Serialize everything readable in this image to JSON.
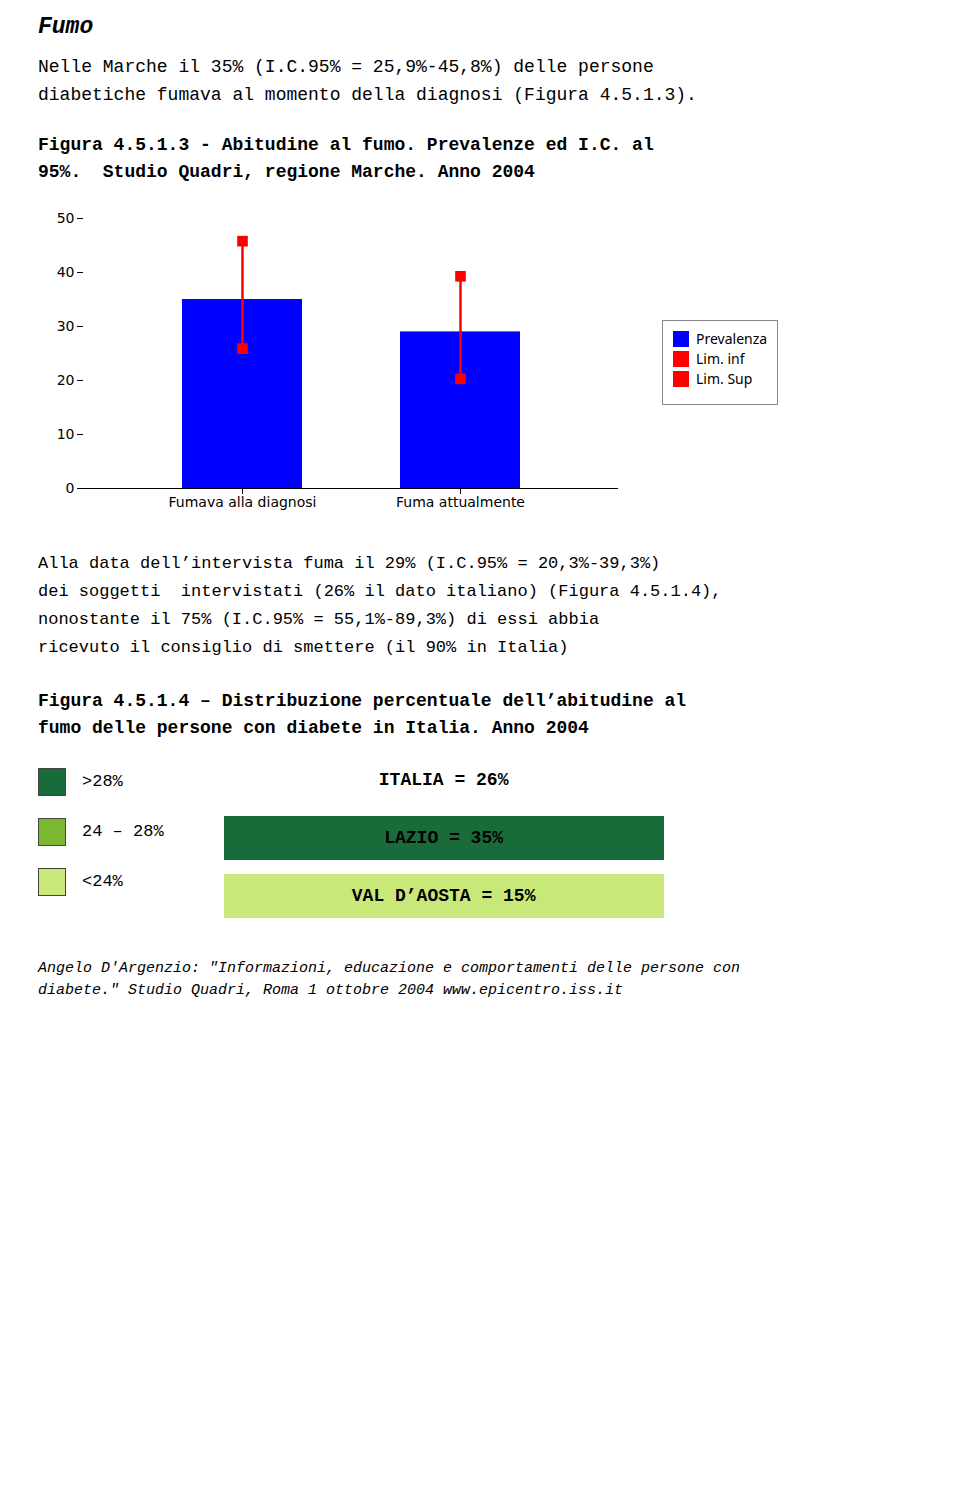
{
  "chart_data": [
    {
      "type": "bar",
      "title": "Figura 4.5.1.3 - Abitudine al fumo. Prevalenze ed I.C. al\n95%.  Studio Quadri, regione Marche. Anno 2004",
      "categories": [
        "Fumava alla diagnosi",
        "Fuma attualmente"
      ],
      "series": [
        {
          "name": "Prevalenza",
          "type": "bar",
          "color": "#0000FF",
          "values": [
            35,
            29
          ]
        },
        {
          "name": "Lim. inf",
          "type": "scatter",
          "marker": "square",
          "color": "#FF0000",
          "values": [
            25.9,
            20.3
          ]
        },
        {
          "name": "Lim. Sup",
          "type": "scatter",
          "marker": "square",
          "color": "#FF0000",
          "values": [
            45.8,
            39.3
          ]
        }
      ],
      "ylim": [
        0,
        50
      ],
      "yticks": [
        0,
        10,
        20,
        30,
        40,
        50
      ],
      "grid": false,
      "legend": "right",
      "annotations": [
        "Fumo",
        "Nelle Marche il 35% (I.C.95% = 25,9%-45,8%) delle persone\ndiabetiche fumava al momento della diagnosi (Figura 4.5.1.3).",
        "Alla data dell’intervista fuma il 29% (I.C.95% = 20,3%-39,3%)\ndei soggetti  intervistati (26% il dato italiano) (Figura 4.5.1.4),\nnonostante il 75% (I.C.95% = 55,1%-89,3%) di essi abbia\nricevuto il consiglio di smettere (il 90% in Italia)"
      ]
    },
    {
      "type": "map",
      "title": "Figura 4.5.1.4 – Distribuzione percentuale dell’abitudine al\nfumo delle persone con diabete in Italia. Anno 2004",
      "categories": [
        ">28%",
        "24 – 28%",
        "<24%"
      ],
      "colors": [
        "#1a6b3a",
        "#7ab832",
        "#c8e87a"
      ],
      "annotations": [
        "ITALIA = 26%",
        "LAZIO = 35%",
        "VAL D’AOSTA = 15%",
        "Angelo D'Argenzio: \"Informazioni, educazione e comportamenti delle persone con\ndiabete.\" Studio Quadri, Roma 1 ottobre 2004 www.epicentro.iss.it"
      ]
    }
  ]
}
